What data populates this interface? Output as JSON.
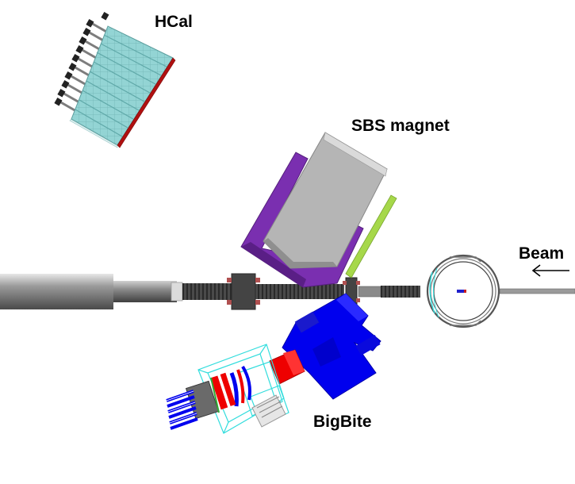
{
  "labels": {
    "hcal": "HCal",
    "sbs_magnet": "SBS magnet",
    "beam": "Beam",
    "bigbite": "BigBite"
  },
  "colors": {
    "magnet_yoke": "#7a2fb0",
    "magnet_body": "#b3b3b3",
    "corrector": "#a6d84a",
    "bigbite_magnet": "#0000ee",
    "bigbite_red": "#ee0000",
    "detector_outline": "#33dddd",
    "hcal_module": "#8fd3d3",
    "hcal_backplate": "#b01010",
    "beamline": "#555555"
  },
  "icons": {
    "beam_direction": "left-arrow-icon"
  }
}
